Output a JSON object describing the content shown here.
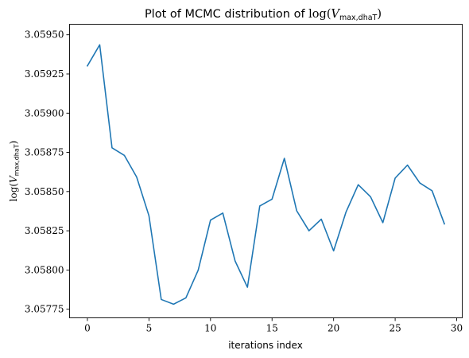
{
  "chart_data": {
    "type": "line",
    "title": {
      "prefix": "Plot of MCMC distribution of ",
      "func": "log(",
      "var": "V",
      "sub": "max,dhaT",
      "close": ")"
    },
    "xlabel": "iterations index",
    "ylabel": {
      "func": "log(",
      "var": "V",
      "sub": "max,dhaT",
      "close": ")"
    },
    "xlim": [
      -1.45,
      30.45
    ],
    "ylim": [
      3.057695,
      3.059567
    ],
    "x_ticks": [
      0,
      5,
      10,
      15,
      20,
      25,
      30
    ],
    "x_tick_labels": [
      "0",
      "5",
      "10",
      "15",
      "20",
      "25",
      "30"
    ],
    "y_ticks": [
      3.05775,
      3.058,
      3.05825,
      3.0585,
      3.05875,
      3.059,
      3.05925,
      3.0595
    ],
    "y_tick_labels": [
      "3.05775",
      "3.05800",
      "3.05825",
      "3.05850",
      "3.05875",
      "3.05900",
      "3.05925",
      "3.05950"
    ],
    "grid": false,
    "series": [
      {
        "color": "#1f77b4",
        "x": [
          0,
          1,
          2,
          3,
          4,
          5,
          6,
          7,
          8,
          9,
          10,
          11,
          12,
          13,
          14,
          15,
          16,
          17,
          18,
          19,
          20,
          21,
          22,
          23,
          24,
          25,
          26,
          27,
          28,
          29
        ],
        "y": [
          3.059302,
          3.059436,
          3.058779,
          3.058731,
          3.058593,
          3.058346,
          3.057812,
          3.057782,
          3.057822,
          3.057999,
          3.058318,
          3.058363,
          3.058057,
          3.05789,
          3.058408,
          3.058452,
          3.058712,
          3.058378,
          3.05825,
          3.058324,
          3.058122,
          3.058368,
          3.058544,
          3.058467,
          3.058302,
          3.058586,
          3.058669,
          3.058555,
          3.058505,
          3.058294
        ]
      }
    ]
  }
}
